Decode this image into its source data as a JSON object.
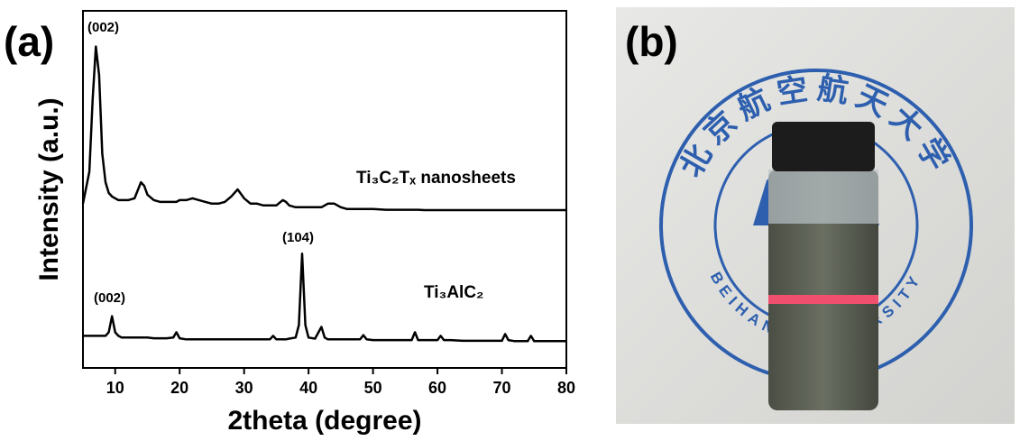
{
  "chart_data": {
    "type": "line",
    "panel_label": "(a)",
    "xlabel": "2theta (degree)",
    "ylabel": "Intensity (a.u.)",
    "xlim": [
      5,
      80
    ],
    "xticks": [
      10,
      20,
      30,
      40,
      50,
      60,
      70,
      80
    ],
    "ylim": [
      0,
      100
    ],
    "x": [
      5,
      6,
      6.5,
      7,
      7.5,
      8,
      8.5,
      9,
      9.5,
      10,
      10.5,
      11,
      12,
      13,
      14,
      14.5,
      15,
      16,
      17,
      18,
      19,
      19.5,
      20,
      21,
      22,
      23,
      24,
      25,
      26,
      27,
      28,
      29,
      30,
      31,
      32,
      33,
      34,
      34.5,
      35,
      36,
      36.5,
      37,
      38,
      38.5,
      39,
      39.5,
      40,
      41,
      42,
      42.5,
      43,
      44,
      45,
      46,
      48,
      48.5,
      49,
      50,
      52,
      54,
      56,
      56.5,
      57,
      58,
      60,
      60.5,
      61,
      62,
      64,
      65,
      66,
      68,
      70,
      70.5,
      71,
      72,
      74,
      74.5,
      75,
      76,
      78,
      80
    ],
    "series": [
      {
        "name": "Ti₃C₂Tₓ nanosheets",
        "color": "#000000",
        "values": [
          46,
          55,
          75,
          90,
          82,
          60,
          52,
          49,
          48,
          47.5,
          47,
          47,
          47,
          47.5,
          52,
          51,
          48.5,
          47,
          46.5,
          46.5,
          46.5,
          46.5,
          47,
          47,
          47.5,
          47,
          46.5,
          46,
          46,
          46.5,
          48,
          50,
          47.5,
          46,
          46,
          45.5,
          45.5,
          45.5,
          45.5,
          47,
          46.5,
          45.5,
          45,
          45,
          45,
          45,
          45,
          45,
          45,
          45.5,
          46,
          46,
          45,
          44.5,
          44.5,
          44.5,
          44.5,
          44.5,
          44.3,
          44.3,
          44.3,
          44.3,
          44.3,
          44.2,
          44.2,
          44.2,
          44.2,
          44.2,
          44.2,
          44.2,
          44.2,
          44.2,
          44.2,
          44.2,
          44.2,
          44.2,
          44.2,
          44.2,
          44.2,
          44.2,
          44.2,
          44.2
        ]
      },
      {
        "name": "Ti₃AlC₂",
        "color": "#000000",
        "values": [
          9,
          9,
          9,
          9,
          9,
          9,
          9,
          10,
          14.5,
          10,
          9,
          8.5,
          8.5,
          8.5,
          8.5,
          8.5,
          8.5,
          8.3,
          8.3,
          8.3,
          8.5,
          10,
          8.3,
          8,
          8,
          8,
          8,
          8,
          8,
          8,
          8,
          8,
          8,
          8,
          8,
          8,
          8,
          9,
          8,
          8,
          8,
          8.2,
          8.5,
          12,
          32,
          12,
          8.5,
          8.2,
          11.5,
          8.5,
          8,
          8,
          8,
          8,
          8,
          9.2,
          8,
          7.8,
          7.8,
          7.8,
          7.8,
          10,
          7.8,
          7.8,
          7.8,
          9,
          7.8,
          7.8,
          7.6,
          7.6,
          7.6,
          7.6,
          7.6,
          9.5,
          7.8,
          7.5,
          7.5,
          9,
          7.5,
          7.5,
          7.5,
          7.5
        ]
      }
    ],
    "annotations": [
      "(002)",
      "(104)",
      "(002)"
    ]
  },
  "photo": {
    "panel_label": "(b)",
    "emblem_text": "北京航空航天大学",
    "emblem_subtext": "BEIHANG UNIVERSITY"
  }
}
